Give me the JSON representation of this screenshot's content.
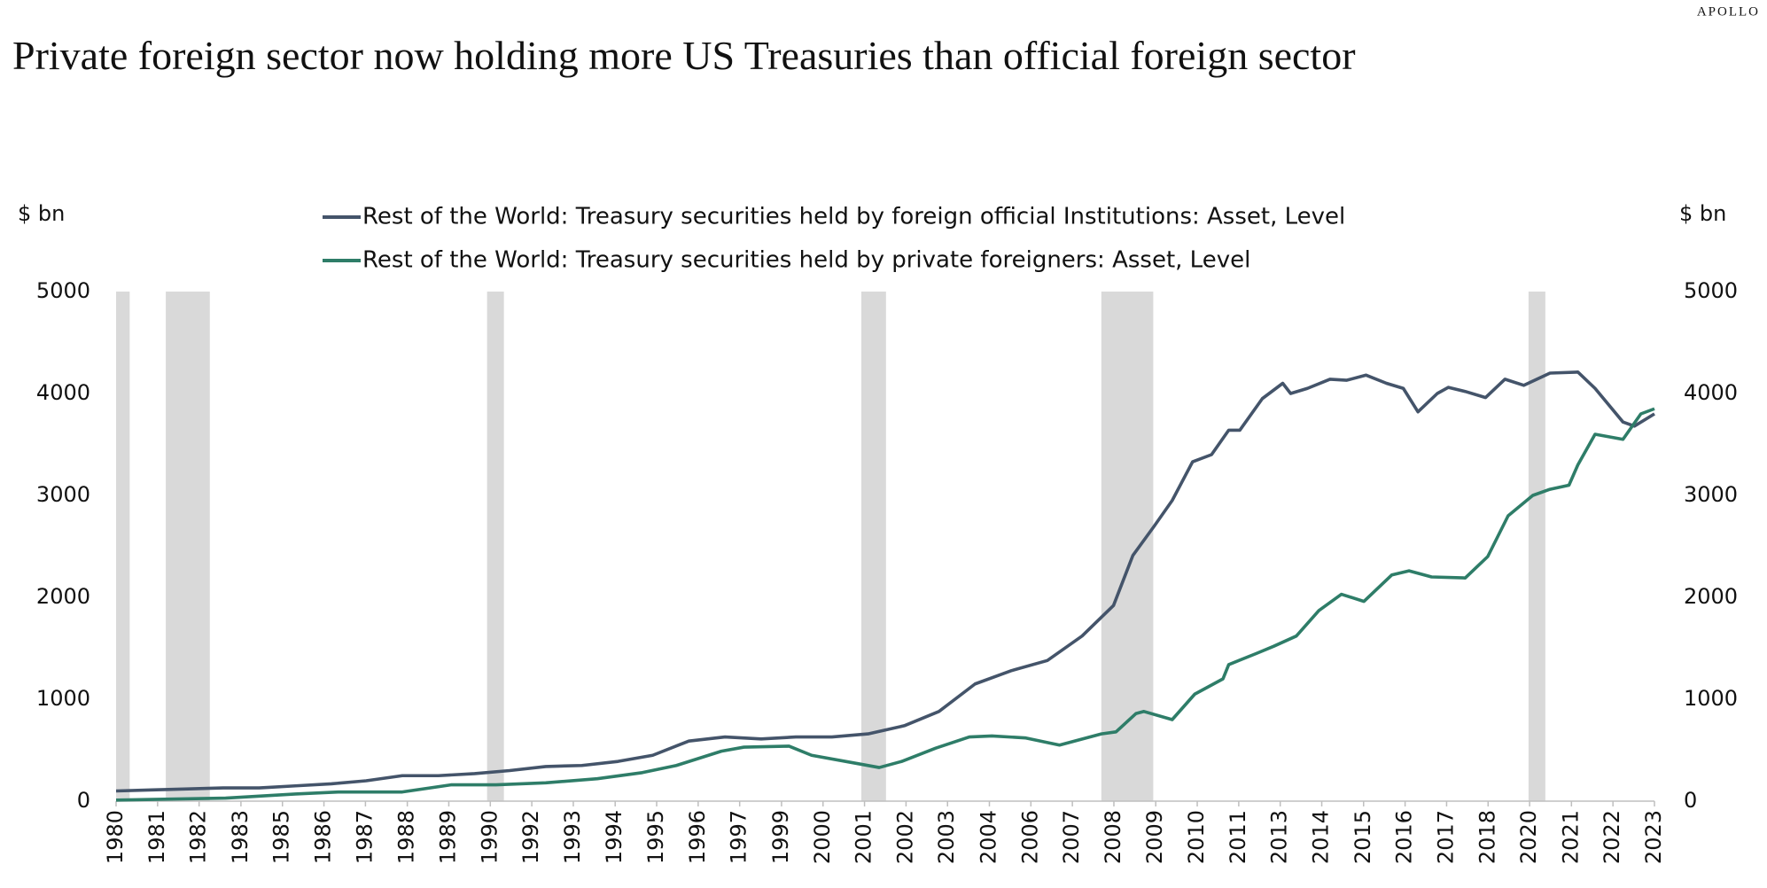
{
  "chart_data": {
    "type": "line",
    "brand": "APOLLO",
    "title": "Private foreign sector now holding more US Treasuries than official foreign sector",
    "y_label": "$ bn",
    "y2_label": "$ bn",
    "ylim": [
      0,
      5000
    ],
    "yticks": [
      0,
      1000,
      2000,
      3000,
      4000,
      5000
    ],
    "y2lim": [
      0,
      5000
    ],
    "y2ticks": [
      0,
      1000,
      2000,
      3000,
      4000,
      5000
    ],
    "xlim": [
      1980,
      2023
    ],
    "xticks": [
      {
        "value": 1980,
        "label": "1980"
      },
      {
        "value": 1981.16,
        "label": "1981"
      },
      {
        "value": 1982.32,
        "label": "1982"
      },
      {
        "value": 1983.49,
        "label": "1983"
      },
      {
        "value": 1984.65,
        "label": "1985"
      },
      {
        "value": 1985.81,
        "label": "1986"
      },
      {
        "value": 1986.97,
        "label": "1987"
      },
      {
        "value": 1988.14,
        "label": "1988"
      },
      {
        "value": 1989.3,
        "label": "1989"
      },
      {
        "value": 1990.46,
        "label": "1990"
      },
      {
        "value": 1991.62,
        "label": "1992"
      },
      {
        "value": 1992.78,
        "label": "1993"
      },
      {
        "value": 1993.95,
        "label": "1994"
      },
      {
        "value": 1995.11,
        "label": "1995"
      },
      {
        "value": 1996.27,
        "label": "1996"
      },
      {
        "value": 1997.43,
        "label": "1997"
      },
      {
        "value": 1998.6,
        "label": "1999"
      },
      {
        "value": 1999.76,
        "label": "2000"
      },
      {
        "value": 2000.92,
        "label": "2001"
      },
      {
        "value": 2002.08,
        "label": "2002"
      },
      {
        "value": 2003.24,
        "label": "2003"
      },
      {
        "value": 2004.41,
        "label": "2004"
      },
      {
        "value": 2005.57,
        "label": "2006"
      },
      {
        "value": 2006.73,
        "label": "2007"
      },
      {
        "value": 2007.89,
        "label": "2008"
      },
      {
        "value": 2009.06,
        "label": "2009"
      },
      {
        "value": 2010.22,
        "label": "2010"
      },
      {
        "value": 2011.38,
        "label": "2011"
      },
      {
        "value": 2012.54,
        "label": "2013"
      },
      {
        "value": 2013.7,
        "label": "2014"
      },
      {
        "value": 2014.87,
        "label": "2015"
      },
      {
        "value": 2016.03,
        "label": "2016"
      },
      {
        "value": 2017.19,
        "label": "2017"
      },
      {
        "value": 2018.35,
        "label": "2018"
      },
      {
        "value": 2019.51,
        "label": "2020"
      },
      {
        "value": 2020.68,
        "label": "2021"
      },
      {
        "value": 2021.84,
        "label": "2022"
      },
      {
        "value": 2023,
        "label": "2023"
      }
    ],
    "recessions": [
      [
        1980.0,
        1980.38
      ],
      [
        1981.39,
        1982.62
      ],
      [
        1990.37,
        1990.84
      ],
      [
        2000.83,
        2001.52
      ],
      [
        2007.54,
        2008.99
      ],
      [
        2019.48,
        2019.95
      ]
    ],
    "recession_color": "#d9d9d9",
    "series": [
      {
        "name": "Rest of the World: Treasury securities held by foreign official Institutions: Asset, Level",
        "color": "#44546a",
        "x": [
          1980.0,
          1981.01,
          1982.02,
          1982.99,
          1984.0,
          1985.01,
          1986.02,
          1986.99,
          1988.0,
          1989.01,
          1990.02,
          1991.0,
          1992.01,
          1993.02,
          1994.03,
          1995.0,
          1996.01,
          1997.02,
          1998.03,
          1999.0,
          2000.01,
          2001.02,
          2002.03,
          2003.0,
          2004.01,
          2005.02,
          2006.03,
          2007.0,
          2007.88,
          2008.42,
          2009.02,
          2009.52,
          2010.09,
          2010.62,
          2011.1,
          2011.41,
          2012.04,
          2012.61,
          2012.83,
          2013.3,
          2013.93,
          2014.4,
          2014.94,
          2015.51,
          2015.98,
          2016.39,
          2016.93,
          2017.24,
          2017.71,
          2018.28,
          2018.82,
          2019.35,
          2020.08,
          2020.86,
          2021.34,
          2022.12,
          2022.44,
          2023.0
        ],
        "values": [
          100,
          110,
          120,
          130,
          130,
          150,
          170,
          200,
          250,
          250,
          270,
          300,
          340,
          350,
          390,
          450,
          590,
          630,
          610,
          630,
          630,
          660,
          740,
          880,
          1150,
          1280,
          1380,
          1620,
          1920,
          2410,
          2700,
          2950,
          3330,
          3400,
          3640,
          3640,
          3950,
          4100,
          4000,
          4050,
          4140,
          4130,
          4180,
          4100,
          4050,
          3820,
          4000,
          4060,
          4020,
          3960,
          4140,
          4080,
          4200,
          4210,
          4050,
          3720,
          3680,
          3800
        ]
      },
      {
        "name": "Rest of the World: Treasury securities held by private foreigners: Asset, Level",
        "color": "#2e7d68",
        "x": [
          1980.0,
          1983.06,
          1985.01,
          1986.21,
          1988.0,
          1989.36,
          1990.62,
          1992.01,
          1993.45,
          1994.71,
          1995.66,
          1996.92,
          1997.55,
          1998.81,
          1999.44,
          2000.7,
          2001.33,
          2001.96,
          2002.91,
          2003.85,
          2004.48,
          2005.43,
          2006.37,
          2007.54,
          2007.95,
          2008.51,
          2008.73,
          2009.52,
          2010.15,
          2010.94,
          2011.1,
          2011.88,
          2012.36,
          2012.99,
          2013.62,
          2014.25,
          2014.88,
          2015.66,
          2016.14,
          2016.77,
          2017.71,
          2018.34,
          2018.91,
          2019.6,
          2020.08,
          2020.61,
          2020.86,
          2021.34,
          2022.12,
          2022.62,
          2023.0
        ],
        "values": [
          10,
          30,
          70,
          90,
          90,
          160,
          160,
          180,
          220,
          280,
          350,
          490,
          530,
          540,
          450,
          370,
          330,
          390,
          520,
          630,
          640,
          620,
          550,
          660,
          680,
          860,
          880,
          800,
          1050,
          1200,
          1340,
          1450,
          1520,
          1620,
          1870,
          2030,
          1960,
          2220,
          2260,
          2200,
          2190,
          2400,
          2800,
          3000,
          3060,
          3100,
          3300,
          3600,
          3550,
          3800,
          3850
        ]
      }
    ]
  }
}
